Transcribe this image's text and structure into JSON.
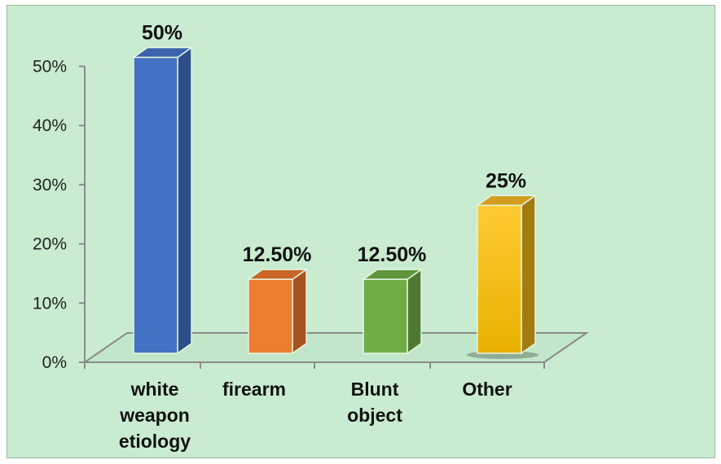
{
  "chart_data": {
    "type": "bar",
    "title": "",
    "xlabel": "",
    "ylabel": "",
    "categories": [
      "white weapon etiology",
      "firearm",
      "Blunt object",
      "Other"
    ],
    "category_lines": [
      [
        "white",
        "weapon",
        "etiology"
      ],
      [
        "firearm"
      ],
      [
        "Blunt",
        "object"
      ],
      [
        "Other"
      ]
    ],
    "values": [
      50,
      12.5,
      12.5,
      25
    ],
    "data_labels": [
      "50%",
      "12.50%",
      "12.50%",
      "25%"
    ],
    "ylim": [
      0,
      50
    ],
    "yticks": [
      0,
      10,
      20,
      30,
      40,
      50
    ],
    "ytick_labels": [
      "0%",
      "10%",
      "20%",
      "30%",
      "40%",
      "50%"
    ],
    "grid": false,
    "legend": "none",
    "style": "3d-column"
  },
  "colors": {
    "background": "#c9ecd0",
    "floor": "#c2e6c9",
    "axis": "#8a8a8a",
    "bars": [
      {
        "front": "#4472c4",
        "side": "#2c4f8c",
        "top": "#3a62ad"
      },
      {
        "front": "#ed7d31",
        "side": "#a85220",
        "top": "#c96526"
      },
      {
        "front": "#70ad47",
        "side": "#4d7a30",
        "top": "#5f963c"
      },
      {
        "front": "#ffc000",
        "side": "#a37c10",
        "top": "#d19e1e"
      }
    ]
  }
}
